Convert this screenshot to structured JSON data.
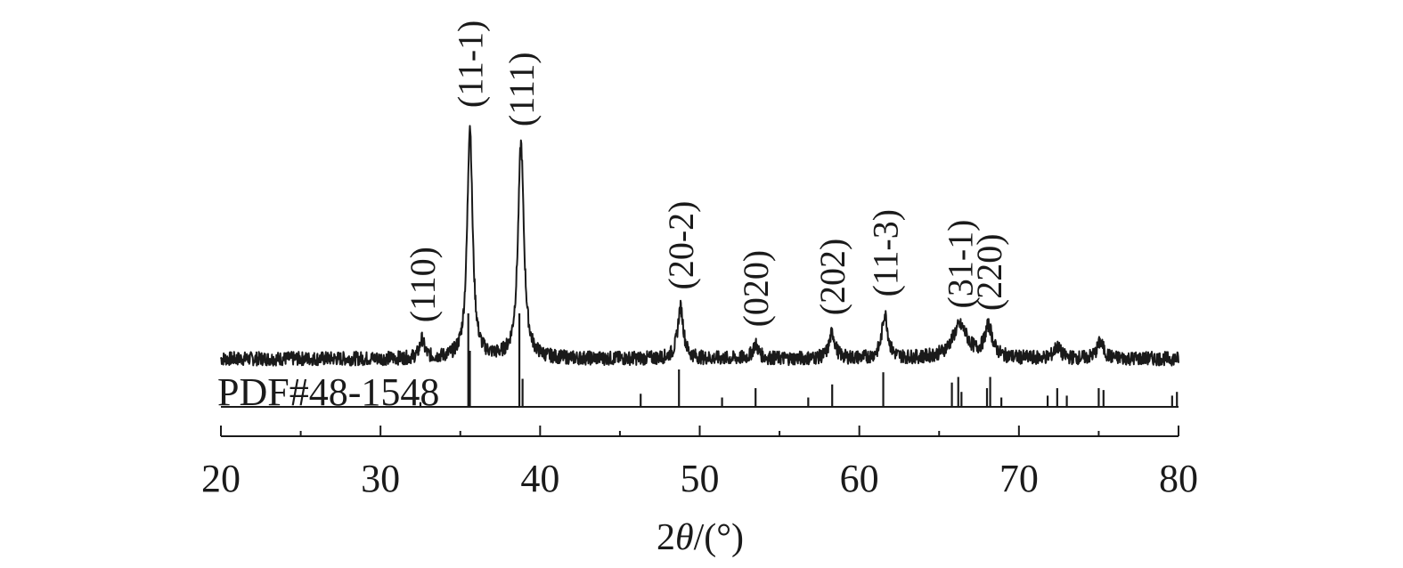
{
  "chart_data": {
    "type": "line",
    "title": "",
    "xlabel": "2θ/(°)",
    "xlabel_parts": {
      "prefix": "2",
      "italic": "θ",
      "suffix": "/(°)"
    },
    "ylabel": "",
    "xlim": [
      20,
      80
    ],
    "x_major_ticks": [
      20,
      30,
      40,
      50,
      60,
      70,
      80
    ],
    "x_minor_ticks": [
      25,
      35,
      45,
      55,
      65,
      75
    ],
    "tick_labels": [
      "20",
      "30",
      "40",
      "50",
      "60",
      "70",
      "80"
    ],
    "grid": false,
    "legend": "none",
    "series": [
      {
        "baseline": 0.0,
        "noise_amplitude": 0.03,
        "peaks": [
          {
            "x": 32.6,
            "height": 0.08,
            "width": 0.18,
            "label": "(110)"
          },
          {
            "x": 35.6,
            "height": 1.0,
            "width": 0.2,
            "label": "(11-1)"
          },
          {
            "x": 38.8,
            "height": 0.92,
            "width": 0.22,
            "label": "(111)"
          },
          {
            "x": 48.8,
            "height": 0.22,
            "width": 0.22,
            "label": "(20-2)"
          },
          {
            "x": 53.5,
            "height": 0.06,
            "width": 0.22,
            "label": "(020)"
          },
          {
            "x": 58.3,
            "height": 0.11,
            "width": 0.22,
            "label": "(202)"
          },
          {
            "x": 61.6,
            "height": 0.19,
            "width": 0.22,
            "label": "(11-3)"
          },
          {
            "x": 66.3,
            "height": 0.14,
            "width": 0.6,
            "label": "(31-1)"
          },
          {
            "x": 68.1,
            "height": 0.13,
            "width": 0.3,
            "label": "(220)"
          },
          {
            "x": 72.4,
            "height": 0.05,
            "width": 0.25,
            "label": ""
          },
          {
            "x": 75.1,
            "height": 0.07,
            "width": 0.25,
            "label": ""
          }
        ]
      }
    ],
    "reference": {
      "label": "PDF#48-1548",
      "lines": [
        {
          "x": 32.5,
          "intensity": 0.05
        },
        {
          "x": 35.5,
          "intensity": 1.0
        },
        {
          "x": 35.6,
          "intensity": 0.6
        },
        {
          "x": 38.7,
          "intensity": 1.0
        },
        {
          "x": 38.9,
          "intensity": 0.3
        },
        {
          "x": 46.3,
          "intensity": 0.14
        },
        {
          "x": 48.7,
          "intensity": 0.4
        },
        {
          "x": 51.4,
          "intensity": 0.1
        },
        {
          "x": 53.5,
          "intensity": 0.2
        },
        {
          "x": 56.8,
          "intensity": 0.1
        },
        {
          "x": 58.3,
          "intensity": 0.24
        },
        {
          "x": 61.5,
          "intensity": 0.37
        },
        {
          "x": 65.8,
          "intensity": 0.26
        },
        {
          "x": 66.2,
          "intensity": 0.32
        },
        {
          "x": 66.4,
          "intensity": 0.16
        },
        {
          "x": 68.0,
          "intensity": 0.2
        },
        {
          "x": 68.2,
          "intensity": 0.32
        },
        {
          "x": 68.9,
          "intensity": 0.1
        },
        {
          "x": 71.8,
          "intensity": 0.12
        },
        {
          "x": 72.4,
          "intensity": 0.2
        },
        {
          "x": 73.0,
          "intensity": 0.12
        },
        {
          "x": 75.0,
          "intensity": 0.2
        },
        {
          "x": 75.3,
          "intensity": 0.18
        },
        {
          "x": 79.6,
          "intensity": 0.12
        },
        {
          "x": 79.9,
          "intensity": 0.16
        }
      ]
    }
  }
}
